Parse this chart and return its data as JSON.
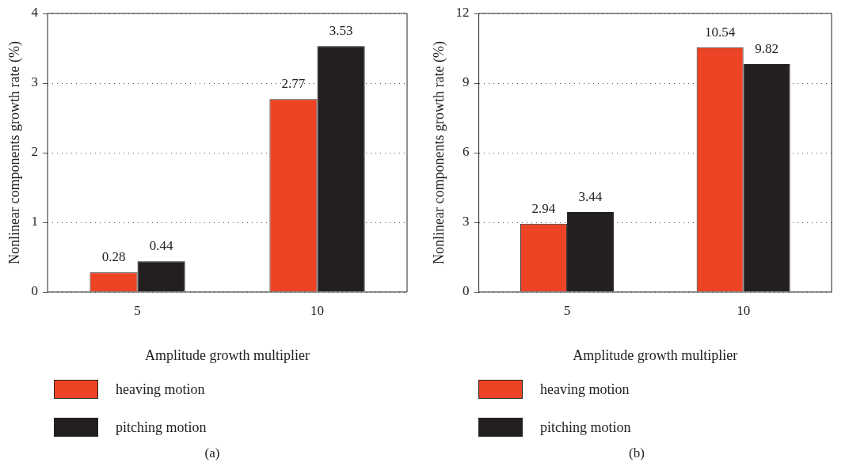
{
  "chart_data": [
    {
      "type": "bar",
      "xlabel": "Amplitude growth multiplier",
      "ylabel": "Nonlinear components growth rate (%)",
      "categories": [
        "5",
        "10"
      ],
      "series": [
        {
          "name": "heaving motion",
          "color": "#ee4426",
          "values": [
            0.28,
            2.77
          ]
        },
        {
          "name": "pitching motion",
          "color": "#231f20",
          "values": [
            0.44,
            3.53
          ]
        }
      ],
      "ylim": [
        0,
        4
      ],
      "yticks": [
        0,
        1,
        2,
        3,
        4
      ],
      "grid": "y",
      "data_labels": true,
      "legend": "bottom left",
      "annotations": [
        "(a)"
      ]
    },
    {
      "type": "bar",
      "xlabel": "Amplitude growth multiplier",
      "ylabel": "Nonlinear components growth rate (%)",
      "categories": [
        "5",
        "10"
      ],
      "series": [
        {
          "name": "heaving motion",
          "color": "#ee4426",
          "values": [
            2.94,
            10.54
          ]
        },
        {
          "name": "pitching motion",
          "color": "#231f20",
          "values": [
            3.44,
            9.82
          ]
        }
      ],
      "ylim": [
        0,
        12
      ],
      "yticks": [
        0,
        3,
        6,
        9,
        12
      ],
      "grid": "y",
      "data_labels": true,
      "legend": "bottom left",
      "annotations": [
        "(b)"
      ]
    }
  ]
}
